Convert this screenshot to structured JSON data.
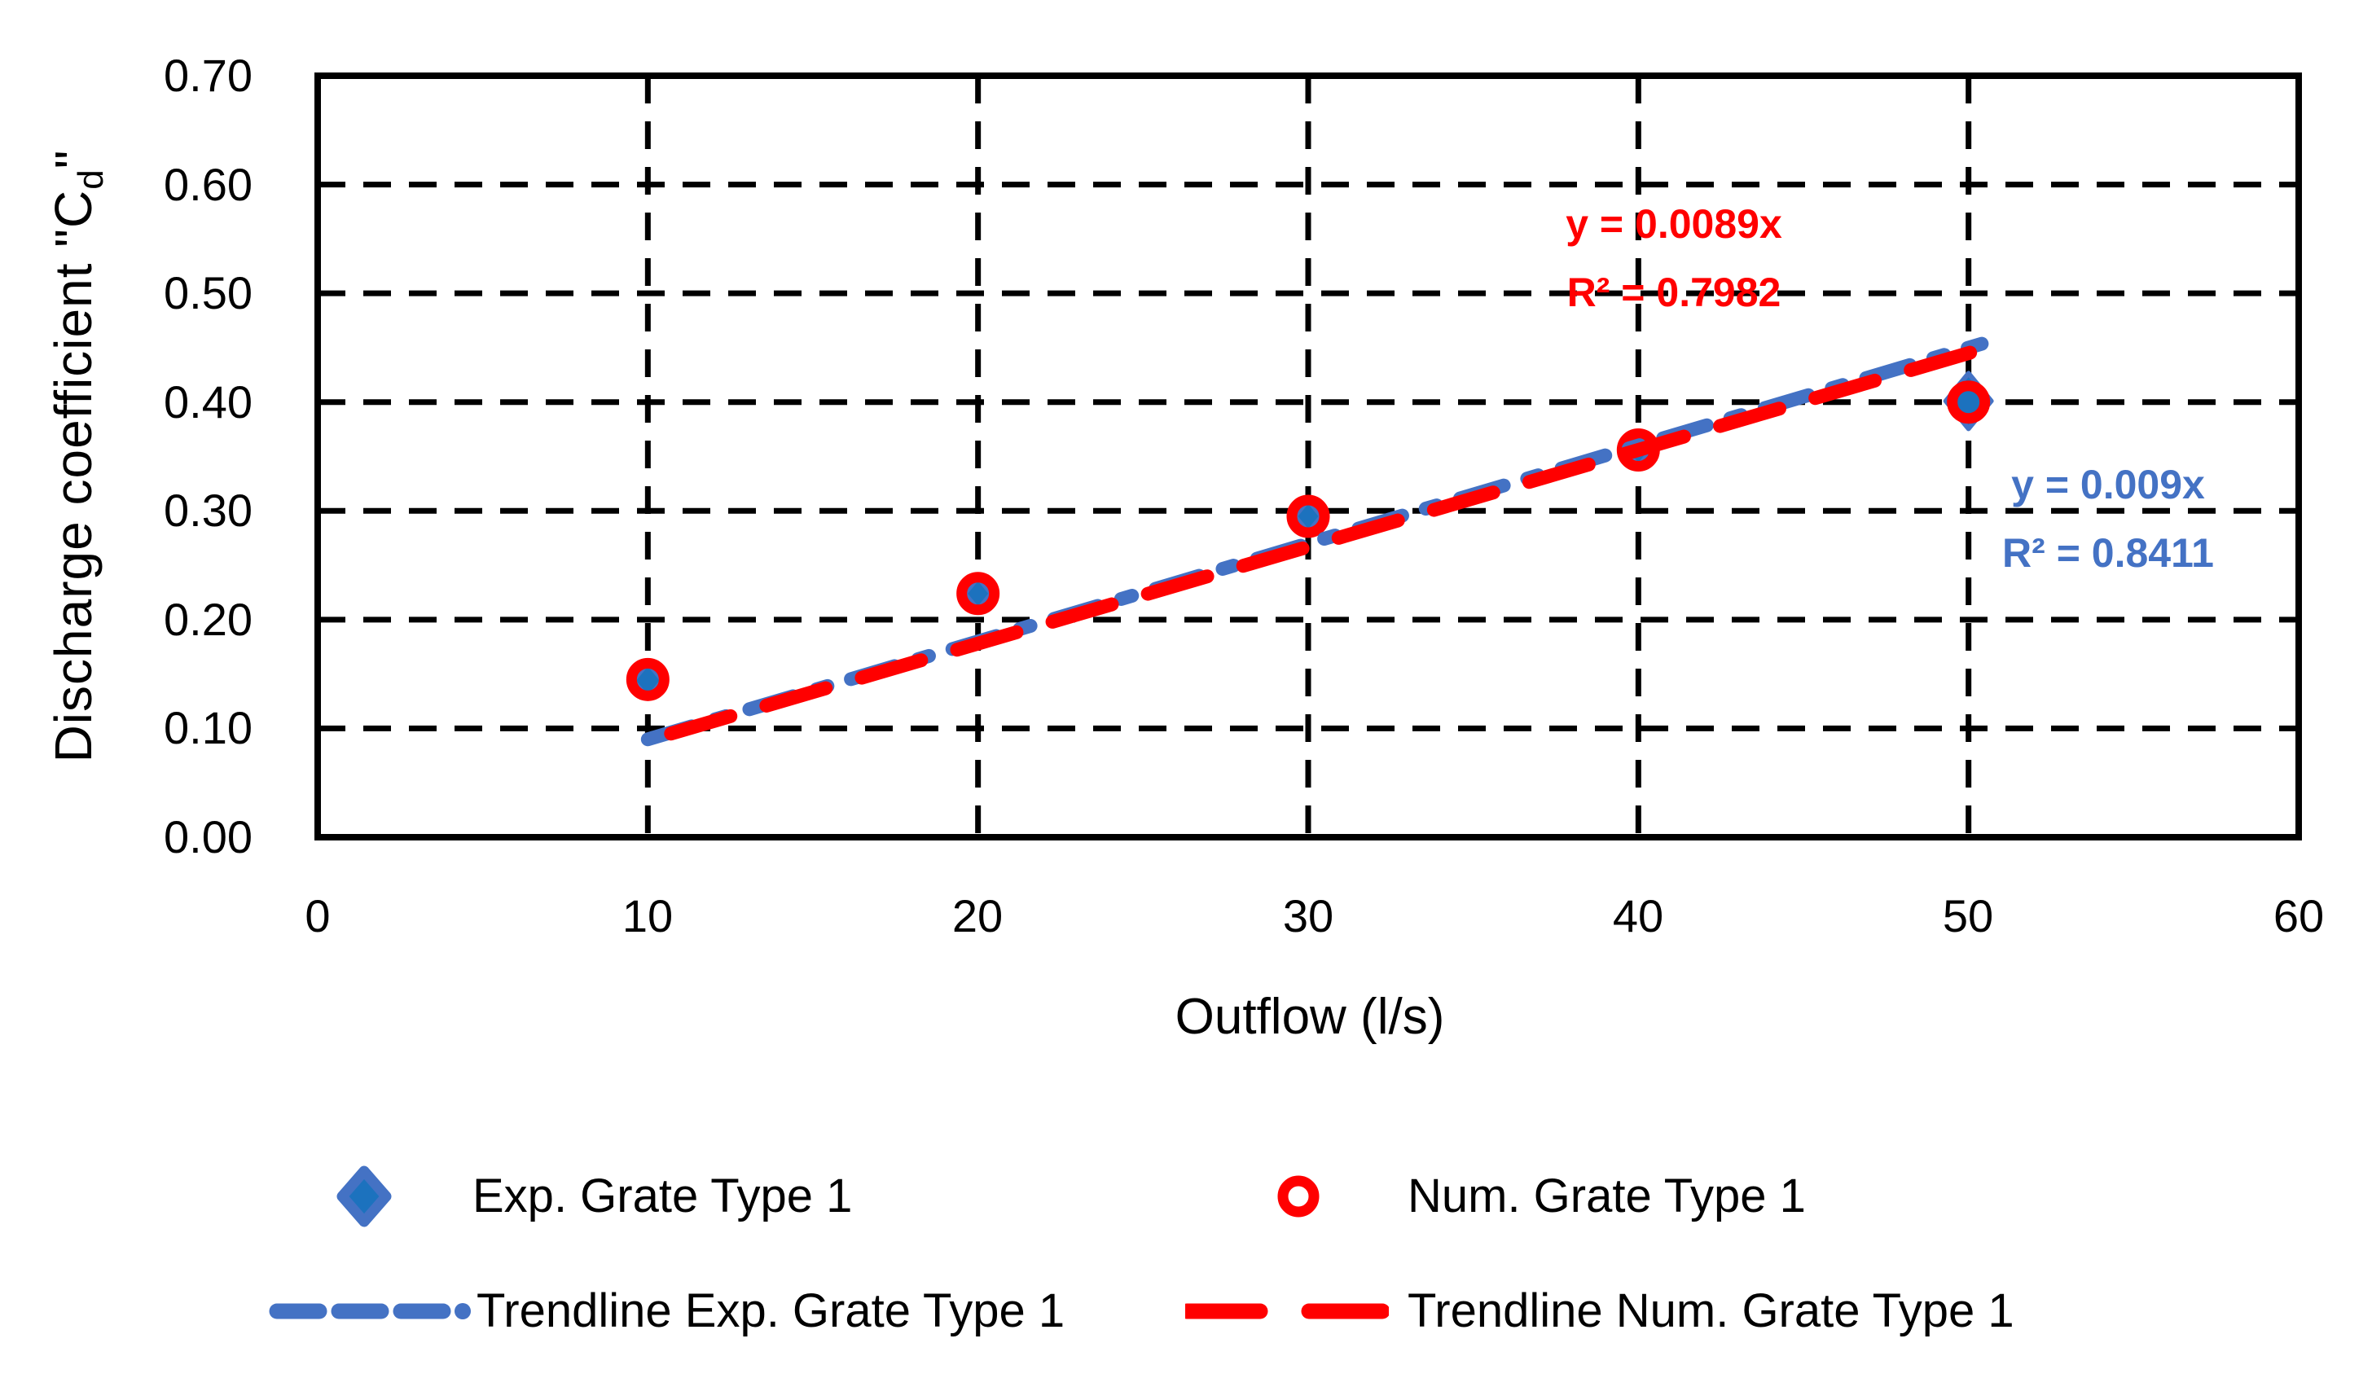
{
  "page": {
    "background": "#FFFFFF"
  },
  "chart_data": {
    "type": "scatter",
    "title": "",
    "xlabel": "Outflow (l/s)",
    "ylabel": {
      "prefix": "Discharge coefficient \"C",
      "sub": "d",
      "suffix": "\""
    },
    "xlim": [
      0,
      60
    ],
    "ylim": [
      0,
      0.7
    ],
    "x_tick_labels": [
      "0",
      "10",
      "20",
      "30",
      "40",
      "50",
      "60"
    ],
    "y_tick_labels": [
      "0.70",
      "0.60",
      "0.50",
      "0.40",
      "0.30",
      "0.20",
      "0.10",
      "0.00"
    ],
    "grid": "dashed-black-both-axes",
    "legend_position": "bottom",
    "series": [
      {
        "name": "Exp. Grate Type 1",
        "marker": "diamond",
        "color": "#1C72BE",
        "border_color": "#4472C4",
        "points": [
          [
            10,
            0.144,
            22
          ],
          [
            20,
            0.224,
            20
          ],
          [
            30,
            0.295,
            20
          ],
          [
            40,
            0.356,
            20
          ],
          [
            50,
            0.401,
            34
          ]
        ]
      },
      {
        "name": "Num. Grate Type 1",
        "marker": "open-circle",
        "color": "#FF0000",
        "points": [
          [
            10,
            0.145
          ],
          [
            20,
            0.224
          ],
          [
            30,
            0.295
          ],
          [
            40,
            0.356
          ],
          [
            50,
            0.4
          ]
        ]
      },
      {
        "name": "Trendline Exp. Grate Type 1",
        "type": "trendline",
        "color": "#4472C4",
        "slope": 0.009,
        "x_range": [
          10,
          50.4
        ],
        "equation": "y = 0.009x",
        "r2": "R² = 0.8411",
        "dash": "56 30 14 30",
        "dash_offset": 0
      },
      {
        "name": "Trendline Num. Grate Type 1",
        "type": "trendline",
        "color": "#FF0000",
        "slope": 0.0089,
        "x_range": [
          9.85,
          50.55
        ],
        "equation": "y = 0.0089x",
        "r2": "R² = 0.7982",
        "dash": "76 46",
        "dash_offset": -36
      }
    ],
    "annotations": [
      {
        "line1": "y = 0.0089x",
        "line2": "R² = 0.7982",
        "color": "#FF0000"
      },
      {
        "line1": "y = 0.009x",
        "line2": "R² = 0.8411",
        "color": "#4472C4"
      }
    ]
  },
  "legend": {
    "items": [
      {
        "label": "Exp. Grate Type 1",
        "marker": "diamond"
      },
      {
        "label": "Num. Grate Type 1",
        "marker": "open-circle"
      },
      {
        "label": "Trendline Exp. Grate Type 1",
        "marker": "dashed-line-blue"
      },
      {
        "label": "Trendline Num. Grate Type 1",
        "marker": "dashed-line-red"
      }
    ]
  }
}
